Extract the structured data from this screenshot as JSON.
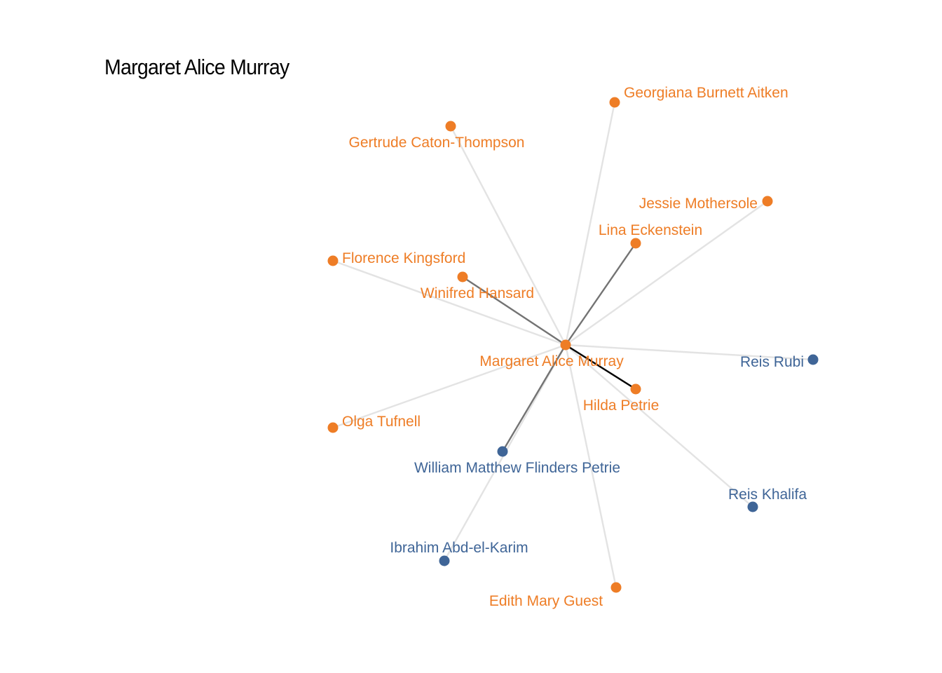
{
  "title": "Margaret Alice Murray",
  "colors": {
    "orange": "#ee7d26",
    "blue": "#3f6597",
    "edge_light": "#e3e3e3",
    "edge_mid": "#737373",
    "edge_dark": "#000000"
  },
  "center": "Margaret Alice Murray",
  "nodes": [
    {
      "id": "murray",
      "label": "Margaret Alice Murray",
      "group": "orange"
    },
    {
      "id": "aitken",
      "label": "Georgiana Burnett Aitken",
      "group": "orange"
    },
    {
      "id": "caton",
      "label": "Gertrude Caton-Thompson",
      "group": "orange"
    },
    {
      "id": "mothersole",
      "label": "Jessie Mothersole",
      "group": "orange"
    },
    {
      "id": "eckenstein",
      "label": "Lina Eckenstein",
      "group": "orange"
    },
    {
      "id": "kingsford",
      "label": "Florence Kingsford",
      "group": "orange"
    },
    {
      "id": "hansard",
      "label": "Winifred Hansard",
      "group": "orange"
    },
    {
      "id": "rubi",
      "label": "Reis Rubi",
      "group": "blue"
    },
    {
      "id": "hilda",
      "label": "Hilda Petrie",
      "group": "orange"
    },
    {
      "id": "tufnell",
      "label": "Olga Tufnell",
      "group": "orange"
    },
    {
      "id": "flinders",
      "label": "William Matthew Flinders Petrie",
      "group": "blue"
    },
    {
      "id": "khalifa",
      "label": "Reis Khalifa",
      "group": "blue"
    },
    {
      "id": "ibrahim",
      "label": "Ibrahim Abd-el-Karim",
      "group": "blue"
    },
    {
      "id": "guest",
      "label": "Edith Mary Guest",
      "group": "orange"
    }
  ],
  "edges": [
    {
      "from": "murray",
      "to": "aitken",
      "weight": "light"
    },
    {
      "from": "murray",
      "to": "caton",
      "weight": "light"
    },
    {
      "from": "murray",
      "to": "mothersole",
      "weight": "light"
    },
    {
      "from": "murray",
      "to": "kingsford",
      "weight": "light"
    },
    {
      "from": "murray",
      "to": "rubi",
      "weight": "light"
    },
    {
      "from": "murray",
      "to": "tufnell",
      "weight": "light"
    },
    {
      "from": "murray",
      "to": "khalifa",
      "weight": "light"
    },
    {
      "from": "murray",
      "to": "ibrahim",
      "weight": "light"
    },
    {
      "from": "murray",
      "to": "guest",
      "weight": "light"
    },
    {
      "from": "murray",
      "to": "eckenstein",
      "weight": "mid"
    },
    {
      "from": "murray",
      "to": "hansard",
      "weight": "mid"
    },
    {
      "from": "murray",
      "to": "flinders",
      "weight": "mid"
    },
    {
      "from": "murray",
      "to": "hilda",
      "weight": "dark"
    }
  ]
}
